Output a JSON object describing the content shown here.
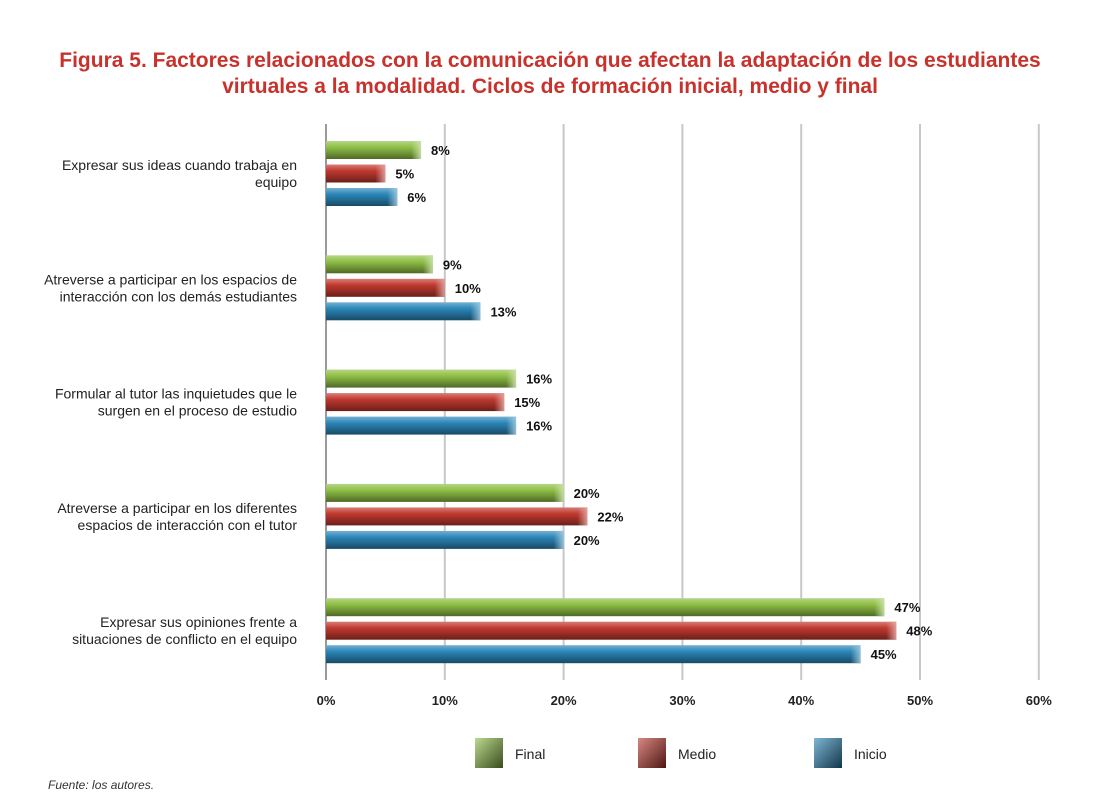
{
  "title": {
    "line1": "Figura 5. Factores relacionados con la comunicación que afectan la adaptación de los estudiantes",
    "line2": "virtuales a la modalidad. Ciclos de formación inicial, medio y final"
  },
  "source": "Fuente: los autores.",
  "colors": {
    "Final": "#8fbf45",
    "Medio": "#c0392f",
    "Inicio": "#2b86b8",
    "grid": "#c8c8c8",
    "title": "#c8322c"
  },
  "chart_data": {
    "type": "bar",
    "orientation": "horizontal",
    "categories": [
      [
        "Expresar sus ideas cuando trabaja en",
        "equipo"
      ],
      [
        "Atreverse a participar en los espacios de",
        "interacción con los demás estudiantes"
      ],
      [
        "Formular al tutor las inquietudes que le",
        "surgen en el proceso de estudio"
      ],
      [
        "Atreverse a participar en los diferentes",
        "espacios de interacción con el tutor"
      ],
      [
        "Expresar sus opiniones frente a",
        "situaciones de conflicto en el equipo"
      ]
    ],
    "series": [
      {
        "name": "Final",
        "values": [
          8,
          9,
          16,
          20,
          47
        ],
        "labels": [
          "8%",
          "9%",
          "16%",
          "20%",
          "47%"
        ]
      },
      {
        "name": "Medio",
        "values": [
          5,
          10,
          15,
          22,
          48
        ],
        "labels": [
          "5%",
          "10%",
          "15%",
          "22%",
          "48%"
        ]
      },
      {
        "name": "Inicio",
        "values": [
          6,
          13,
          16,
          20,
          45
        ],
        "labels": [
          "6%",
          "13%",
          "16%",
          "20%",
          "45%"
        ]
      }
    ],
    "xlim": [
      0,
      60
    ],
    "xticks": [
      0,
      10,
      20,
      30,
      40,
      50,
      60
    ],
    "xtick_labels": [
      "0%",
      "10%",
      "20%",
      "30%",
      "40%",
      "50%",
      "60%"
    ],
    "grid": "vertical",
    "legend": "bottom"
  }
}
